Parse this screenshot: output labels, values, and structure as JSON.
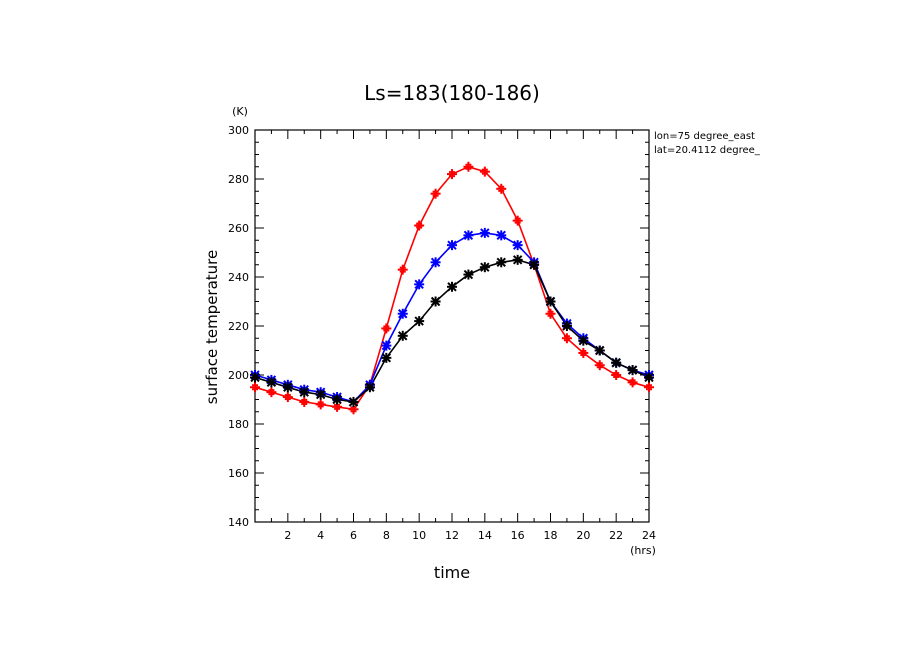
{
  "chart_data": {
    "type": "line",
    "title": "Ls=183(180-186)",
    "xlabel": "time",
    "ylabel": "surface temperature",
    "x_unit": "(hrs)",
    "y_unit": "(K)",
    "xlim": [
      0,
      24
    ],
    "ylim": [
      140,
      300
    ],
    "x_ticks": [
      2,
      4,
      6,
      8,
      10,
      12,
      14,
      16,
      18,
      20,
      22,
      24
    ],
    "y_ticks": [
      140,
      160,
      180,
      200,
      220,
      240,
      260,
      280,
      300
    ],
    "grid": false,
    "annotations": [
      "lon=75 degree_east",
      "lat=20.4112 degree_"
    ],
    "series": [
      {
        "color": "#ff0000",
        "marker": "plus",
        "x": [
          0,
          1,
          2,
          3,
          4,
          5,
          6,
          7,
          8,
          9,
          10,
          11,
          12,
          13,
          14,
          15,
          16,
          17,
          18,
          19,
          20,
          21,
          22,
          23,
          24
        ],
        "y": [
          195,
          193,
          191,
          189,
          188,
          187,
          186,
          196,
          219,
          243,
          261,
          274,
          282,
          285,
          283,
          276,
          263,
          245,
          225,
          215,
          209,
          204,
          200,
          197,
          195
        ]
      },
      {
        "color": "#0000ff",
        "marker": "star",
        "x": [
          0,
          1,
          2,
          3,
          4,
          5,
          6,
          7,
          8,
          9,
          10,
          11,
          12,
          13,
          14,
          15,
          16,
          17,
          18,
          19,
          20,
          21,
          22,
          23,
          24
        ],
        "y": [
          200,
          198,
          196,
          194,
          193,
          191,
          189,
          196,
          212,
          225,
          237,
          246,
          253,
          257,
          258,
          257,
          253,
          246,
          230,
          221,
          215,
          210,
          205,
          202,
          200
        ]
      },
      {
        "color": "#000000",
        "marker": "star",
        "x": [
          0,
          1,
          2,
          3,
          4,
          5,
          6,
          7,
          8,
          9,
          10,
          11,
          12,
          13,
          14,
          15,
          16,
          17,
          18,
          19,
          20,
          21,
          22,
          23,
          24
        ],
        "y": [
          199,
          197,
          195,
          193,
          192,
          190,
          189,
          195,
          207,
          216,
          222,
          230,
          236,
          241,
          244,
          246,
          247,
          245,
          230,
          220,
          214,
          210,
          205,
          202,
          199
        ]
      }
    ]
  }
}
